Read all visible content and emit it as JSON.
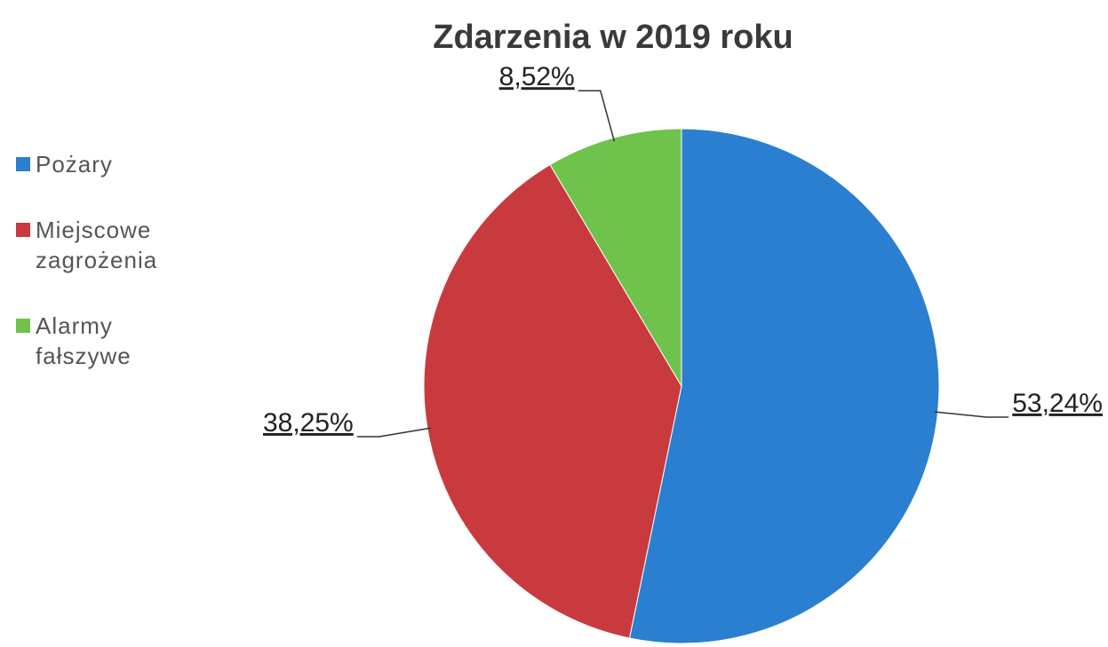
{
  "chart_data": {
    "type": "pie",
    "title": "Zdarzenia w 2019 roku",
    "categories": [
      "Pożary",
      "Miejscowe zagrożenia",
      "Alarmy fałszywe"
    ],
    "values": [
      53.24,
      38.25,
      8.52
    ],
    "value_labels": [
      "53,24%",
      "38,25%",
      "8,52%"
    ],
    "colors": [
      "#2b7fd0",
      "#c93a3e",
      "#6fc24b"
    ],
    "legend": "left"
  }
}
